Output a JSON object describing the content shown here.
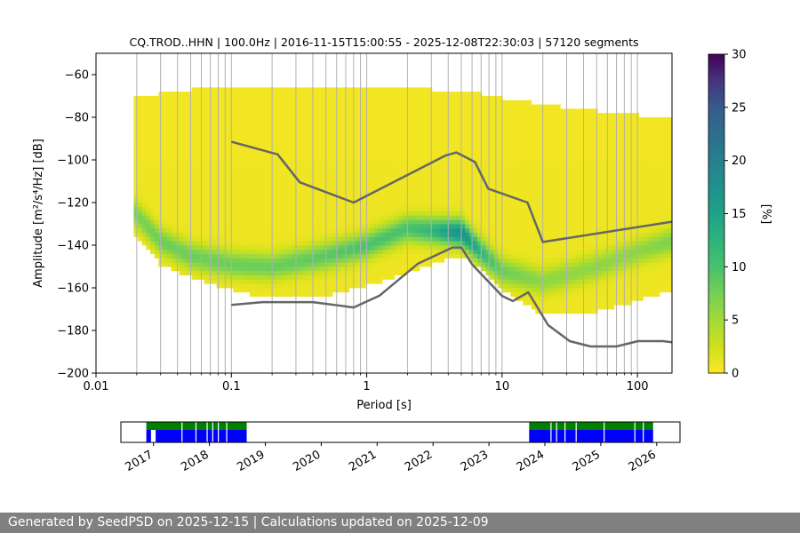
{
  "chart_data": [
    {
      "type": "heatmap",
      "title": "CQ.TROD..HHN | 100.0Hz | 2016-11-15T15:00:55 - 2025-12-08T22:30:03 | 57120 segments",
      "xlabel": "Period [s]",
      "ylabel": "Amplitude [m²/s⁴/Hz] [dB]",
      "xscale": "log",
      "xlim": [
        0.01,
        180
      ],
      "ylim": [
        -200,
        -50
      ],
      "x_ticks": [
        {
          "value": 0.01,
          "label": "0.01"
        },
        {
          "value": 0.1,
          "label": "0.1"
        },
        {
          "value": 1,
          "label": "1"
        },
        {
          "value": 10,
          "label": "10"
        },
        {
          "value": 100,
          "label": "100"
        }
      ],
      "y_ticks": [
        {
          "value": -60,
          "label": "−60"
        },
        {
          "value": -80,
          "label": "−80"
        },
        {
          "value": -100,
          "label": "−100"
        },
        {
          "value": -120,
          "label": "−120"
        },
        {
          "value": -140,
          "label": "−140"
        },
        {
          "value": -160,
          "label": "−160"
        },
        {
          "value": -180,
          "label": "−180"
        },
        {
          "value": -200,
          "label": "−200"
        }
      ],
      "grid": "vertical at log minor periods",
      "colorbar": {
        "label": "[%]",
        "range": [
          0,
          30
        ],
        "ticks": [
          "0",
          "5",
          "10",
          "15",
          "20",
          "25",
          "30"
        ],
        "colormap": "viridis_r"
      },
      "density_profile": [
        {
          "period": 0.019,
          "low": -133,
          "high": -72,
          "mode": -124,
          "peak": 7
        },
        {
          "period": 0.03,
          "low": -148,
          "high": -70,
          "mode": -138,
          "peak": 8
        },
        {
          "period": 0.05,
          "low": -154,
          "high": -68,
          "mode": -145,
          "peak": 8
        },
        {
          "period": 0.1,
          "low": -160,
          "high": -67,
          "mode": -149,
          "peak": 8
        },
        {
          "period": 0.2,
          "low": -164,
          "high": -67,
          "mode": -150,
          "peak": 8
        },
        {
          "period": 0.5,
          "low": -163,
          "high": -67,
          "mode": -145,
          "peak": 9
        },
        {
          "period": 1,
          "low": -158,
          "high": -67,
          "mode": -140,
          "peak": 10
        },
        {
          "period": 2,
          "low": -152,
          "high": -67,
          "mode": -132,
          "peak": 10
        },
        {
          "period": 3,
          "low": -148,
          "high": -68,
          "mode": -133,
          "peak": 12
        },
        {
          "period": 5,
          "low": -144,
          "high": -69,
          "mode": -134,
          "peak": 18
        },
        {
          "period": 7,
          "low": -150,
          "high": -70,
          "mode": -143,
          "peak": 12
        },
        {
          "period": 10,
          "low": -160,
          "high": -72,
          "mode": -152,
          "peak": 8
        },
        {
          "period": 20,
          "low": -172,
          "high": -75,
          "mode": -157,
          "peak": 6
        },
        {
          "period": 50,
          "low": -170,
          "high": -78,
          "mode": -150,
          "peak": 6
        },
        {
          "period": 100,
          "low": -165,
          "high": -80,
          "mode": -143,
          "peak": 6
        },
        {
          "period": 180,
          "low": -160,
          "high": -82,
          "mode": -138,
          "peak": 7
        }
      ],
      "series": [
        {
          "name": "NHNM",
          "x": [
            0.1,
            0.22,
            0.32,
            0.8,
            3.8,
            4.6,
            6.3,
            7.9,
            15.4,
            20,
            180
          ],
          "values": [
            -91.5,
            -97.4,
            -110.5,
            -120,
            -98,
            -96.5,
            -101,
            -113.5,
            -120,
            -138.5,
            -129
          ]
        },
        {
          "name": "NLNM",
          "x": [
            0.1,
            0.17,
            0.4,
            0.8,
            1.24,
            2.4,
            4.3,
            5,
            6,
            10,
            12,
            15.6,
            21.9,
            31.6,
            45,
            70,
            101,
            154,
            180
          ],
          "values": [
            -168,
            -166.7,
            -166.7,
            -169.2,
            -163.7,
            -148.6,
            -141.1,
            -141.1,
            -149,
            -163.8,
            -166.2,
            -162.1,
            -177.5,
            -185,
            -187.5,
            -187.5,
            -185,
            -185,
            -185.5
          ]
        }
      ]
    },
    {
      "type": "timeline",
      "x_ticks": [
        "2017",
        "2018",
        "2019",
        "2020",
        "2021",
        "2022",
        "2023",
        "2024",
        "2025",
        "2026"
      ],
      "xlim": [
        "2016-06",
        "2026-06"
      ],
      "green_spans": [
        [
          "2016-11-15",
          "2018-09-01"
        ],
        [
          "2023-09-20",
          "2025-12-08"
        ]
      ],
      "blue_spans": [
        [
          "2016-11-15",
          "2016-12-15"
        ],
        [
          "2017-01-15",
          "2018-09-01"
        ],
        [
          "2023-09-20",
          "2025-12-08"
        ]
      ],
      "colors": {
        "green": "#008000",
        "blue": "#0000ff"
      }
    }
  ],
  "footer": {
    "text": "Generated by SeedPSD on 2025-12-15 | Calculations updated on 2025-12-09"
  },
  "colors": {
    "model_curve": "#666666",
    "grid": "#b0b0b0",
    "footer_bg": "#808080"
  }
}
